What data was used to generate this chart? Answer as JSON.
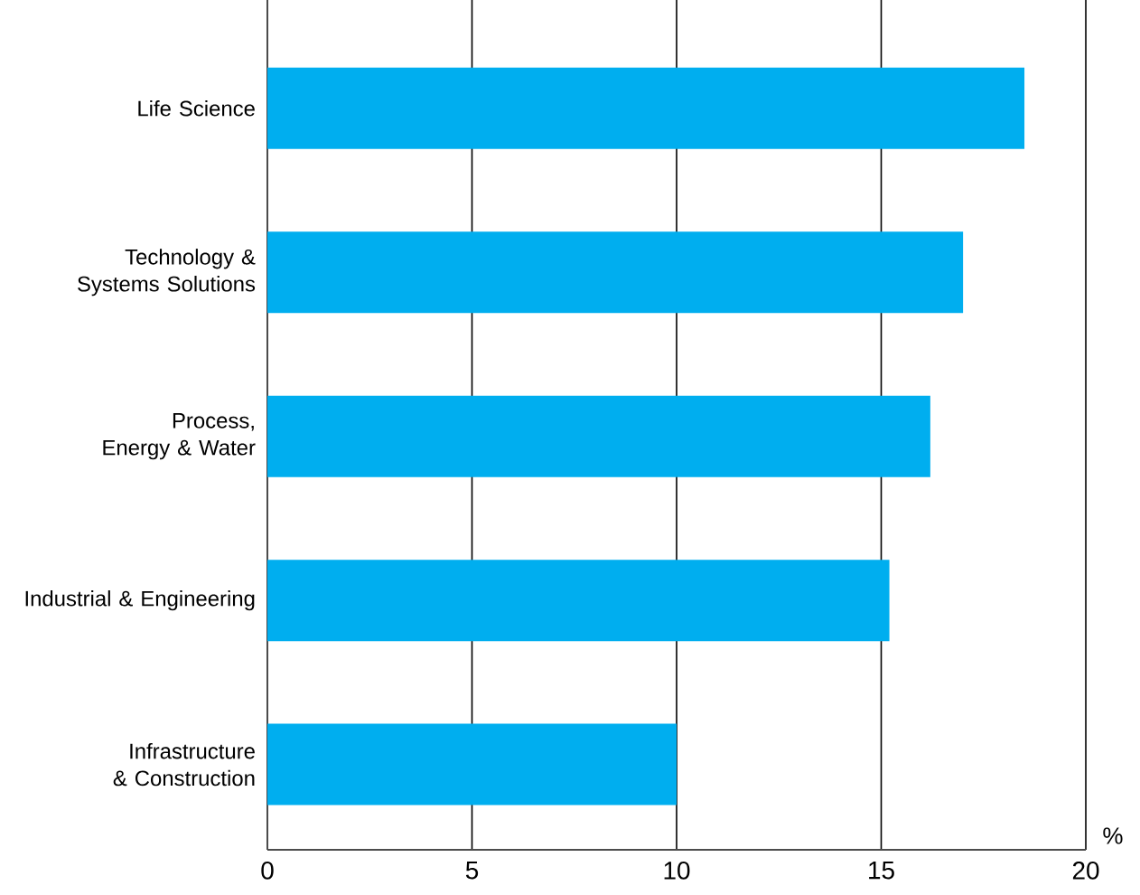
{
  "chart_data": {
    "type": "bar",
    "orientation": "horizontal",
    "xlabel": "%",
    "categories": [
      "Life Science",
      "Technology & Systems Solutions",
      "Process, Energy & Water",
      "Industrial & Engineering",
      "Infrastructure & Construction"
    ],
    "values": [
      18.5,
      17.0,
      16.2,
      15.2,
      10.0
    ],
    "color": "#00aeef",
    "xlim": [
      0,
      20
    ],
    "xticks": [
      0,
      5,
      10,
      15,
      20
    ],
    "grid": "x"
  }
}
